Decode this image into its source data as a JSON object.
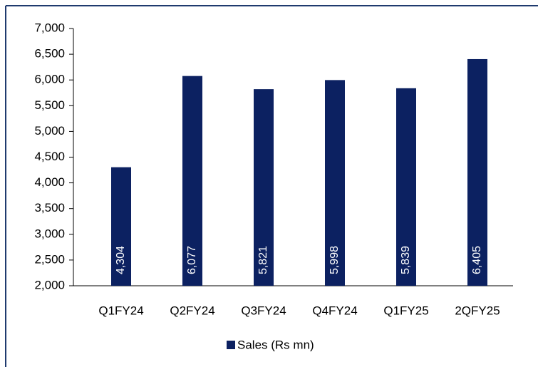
{
  "chart_data": {
    "type": "bar",
    "categories": [
      "Q1FY24",
      "Q2FY24",
      "Q3FY24",
      "Q4FY24",
      "Q1FY25",
      "2QFY25"
    ],
    "series": [
      {
        "name": "Sales (Rs mn)",
        "color": "#0c2161",
        "values": [
          4304,
          6077,
          5821,
          5998,
          5839,
          6405
        ],
        "value_labels": [
          "4,304",
          "6,077",
          "5,821",
          "5,998",
          "5,839",
          "6,405"
        ]
      }
    ],
    "ylim": [
      2000,
      7000
    ],
    "yticks": [
      {
        "value": 2000,
        "label": "2,000"
      },
      {
        "value": 2500,
        "label": "2,500"
      },
      {
        "value": 3000,
        "label": "3,000"
      },
      {
        "value": 3500,
        "label": "3,500"
      },
      {
        "value": 4000,
        "label": "4,000"
      },
      {
        "value": 4500,
        "label": "4,500"
      },
      {
        "value": 5000,
        "label": "5,000"
      },
      {
        "value": 5500,
        "label": "5,500"
      },
      {
        "value": 6000,
        "label": "6,000"
      },
      {
        "value": 6500,
        "label": "6,500"
      },
      {
        "value": 7000,
        "label": "7,000"
      }
    ],
    "legend": "bottom",
    "grid": false
  }
}
